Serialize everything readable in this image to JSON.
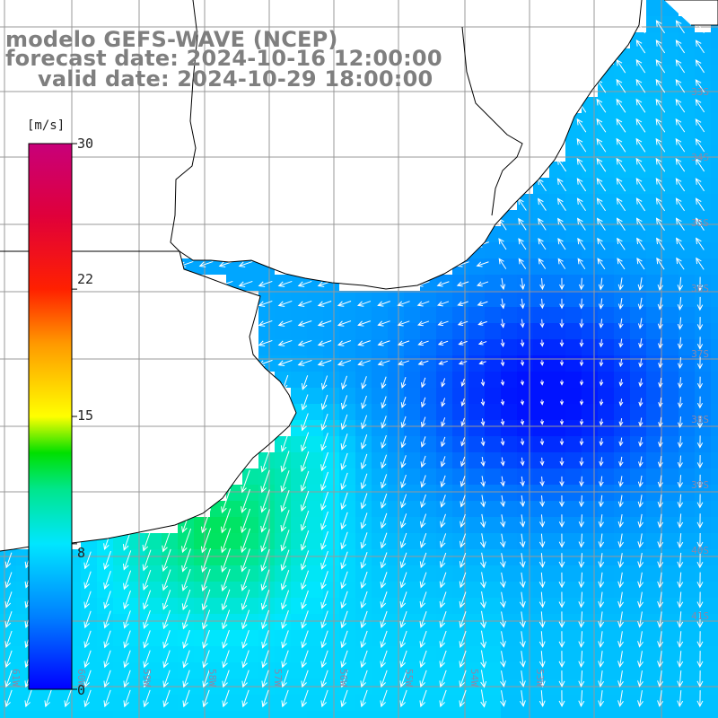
{
  "title": {
    "line1": "modelo GEFS-WAVE (NCEP)",
    "line2": "forecast date: 2024-10-16 12:00:00",
    "line3": "valid date: 2024-10-29 18:00:00"
  },
  "colorbar": {
    "unit": "[m/s]",
    "min": 0,
    "max": 30,
    "ticks": [
      "30",
      "22",
      "15",
      "8",
      "0"
    ],
    "tick_values": [
      30,
      22,
      15,
      8,
      0
    ],
    "colors": [
      "#0000ff",
      "#00aaff",
      "#00e6e6",
      "#00e000",
      "#ffff00",
      "#ff8000",
      "#ff0000",
      "#cc0066"
    ]
  },
  "map": {
    "variable": "wind speed and direction",
    "lat_labels": [
      "33S",
      "34S",
      "35S",
      "36S",
      "37S",
      "38S",
      "39S",
      "40S",
      "41S"
    ],
    "lon_labels": [
      "61W",
      "60W",
      "59W",
      "58W",
      "57W",
      "56W",
      "55W",
      "54W",
      "53W"
    ],
    "land_color": "#ffffff",
    "grid_color": "#999999"
  }
}
